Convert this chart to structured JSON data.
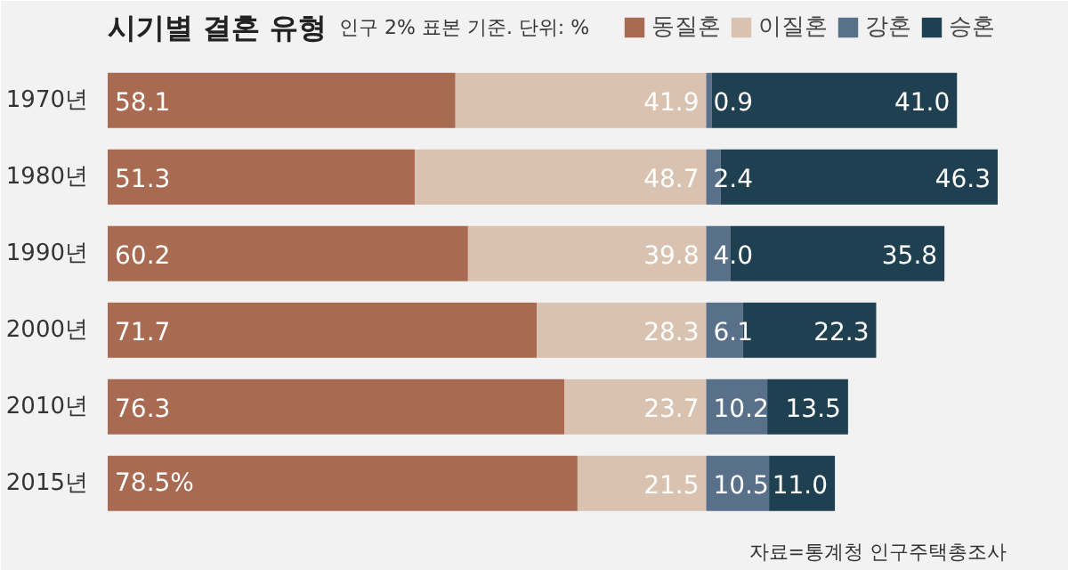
{
  "chart_data": {
    "type": "bar",
    "orientation": "horizontal",
    "stacked": true,
    "title": "시기별 결혼 유형",
    "subtitle": "인구 2% 표본 기준. 단위: %",
    "categories": [
      "1970년",
      "1980년",
      "1990년",
      "2000년",
      "2010년",
      "2015년"
    ],
    "series": [
      {
        "name": "동질혼",
        "color": "#a86b52",
        "values": [
          58.1,
          51.3,
          60.2,
          71.7,
          76.3,
          78.5
        ],
        "value_labels": [
          "58.1",
          "51.3",
          "60.2",
          "71.7",
          "76.3",
          "78.5%"
        ]
      },
      {
        "name": "이질혼",
        "color": "#d9c3b0",
        "values": [
          41.9,
          48.7,
          39.8,
          28.3,
          23.7,
          21.5
        ]
      },
      {
        "name": "강혼",
        "color": "#58708a",
        "values": [
          0.9,
          2.4,
          4.0,
          6.1,
          10.2,
          10.5
        ],
        "value_labels": [
          "0.9",
          "2.4",
          "4.0",
          "6.1",
          "10.2",
          "10.5"
        ]
      },
      {
        "name": "승혼",
        "color": "#1f4050",
        "values": [
          41.0,
          46.3,
          35.8,
          22.3,
          13.5,
          11.0
        ],
        "value_labels": [
          "41.0",
          "46.3",
          "35.8",
          "22.3",
          "13.5",
          "11.0"
        ]
      }
    ],
    "data_labels": true,
    "tick_labels": "y",
    "legend": "top right",
    "grid": false,
    "annotations": [
      "자료=통계청 인구주택총조사"
    ]
  }
}
